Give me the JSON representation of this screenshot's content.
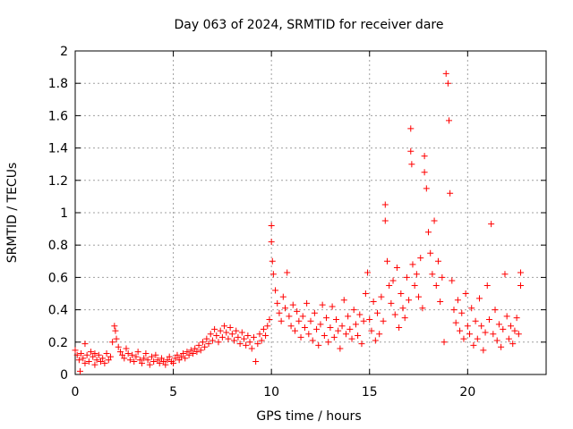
{
  "chart_data": {
    "type": "scatter",
    "title": "Day 063 of 2024, SRMTID for receiver dare",
    "xlabel": "GPS time / hours",
    "ylabel": "SRMTID / TECUs",
    "xlim": [
      0,
      24
    ],
    "ylim": [
      0,
      2
    ],
    "x_ticks": [
      0,
      5,
      10,
      15,
      20
    ],
    "x_tick_labels": [
      "0",
      "5",
      "10",
      "15",
      "20"
    ],
    "y_ticks": [
      0,
      0.2,
      0.4,
      0.6,
      0.8,
      1,
      1.2,
      1.4,
      1.6,
      1.8,
      2
    ],
    "y_tick_labels": [
      "0",
      "0.2",
      "0.4",
      "0.6",
      "0.8",
      "1",
      "1.2",
      "1.4",
      "1.6",
      "1.8",
      "2"
    ],
    "grid": true,
    "marker": "+",
    "color": "#ff0000",
    "series": [
      {
        "name": "SRMTID",
        "points": [
          [
            0.0,
            0.15
          ],
          [
            0.1,
            0.12
          ],
          [
            0.2,
            0.09
          ],
          [
            0.25,
            0.02
          ],
          [
            0.3,
            0.13
          ],
          [
            0.4,
            0.1
          ],
          [
            0.5,
            0.07
          ],
          [
            0.5,
            0.19
          ],
          [
            0.6,
            0.12
          ],
          [
            0.7,
            0.08
          ],
          [
            0.8,
            0.14
          ],
          [
            0.9,
            0.11
          ],
          [
            1.0,
            0.06
          ],
          [
            1.0,
            0.13
          ],
          [
            1.1,
            0.09
          ],
          [
            1.2,
            0.12
          ],
          [
            1.3,
            0.08
          ],
          [
            1.4,
            0.1
          ],
          [
            1.5,
            0.07
          ],
          [
            1.6,
            0.13
          ],
          [
            1.7,
            0.09
          ],
          [
            1.8,
            0.11
          ],
          [
            1.9,
            0.2
          ],
          [
            2.0,
            0.3
          ],
          [
            2.05,
            0.27
          ],
          [
            2.1,
            0.22
          ],
          [
            2.2,
            0.17
          ],
          [
            2.3,
            0.14
          ],
          [
            2.4,
            0.12
          ],
          [
            2.5,
            0.1
          ],
          [
            2.6,
            0.16
          ],
          [
            2.7,
            0.13
          ],
          [
            2.8,
            0.09
          ],
          [
            2.9,
            0.12
          ],
          [
            3.0,
            0.08
          ],
          [
            3.1,
            0.11
          ],
          [
            3.2,
            0.14
          ],
          [
            3.3,
            0.09
          ],
          [
            3.4,
            0.07
          ],
          [
            3.5,
            0.1
          ],
          [
            3.6,
            0.13
          ],
          [
            3.7,
            0.09
          ],
          [
            3.8,
            0.06
          ],
          [
            3.9,
            0.11
          ],
          [
            4.0,
            0.08
          ],
          [
            4.1,
            0.12
          ],
          [
            4.2,
            0.09
          ],
          [
            4.3,
            0.07
          ],
          [
            4.4,
            0.1
          ],
          [
            4.5,
            0.08
          ],
          [
            4.6,
            0.06
          ],
          [
            4.7,
            0.09
          ],
          [
            4.8,
            0.11
          ],
          [
            4.9,
            0.08
          ],
          [
            5.0,
            0.07
          ],
          [
            5.1,
            0.1
          ],
          [
            5.2,
            0.12
          ],
          [
            5.3,
            0.09
          ],
          [
            5.4,
            0.11
          ],
          [
            5.5,
            0.13
          ],
          [
            5.6,
            0.1
          ],
          [
            5.7,
            0.14
          ],
          [
            5.8,
            0.12
          ],
          [
            5.9,
            0.15
          ],
          [
            6.0,
            0.13
          ],
          [
            6.1,
            0.16
          ],
          [
            6.2,
            0.14
          ],
          [
            6.3,
            0.18
          ],
          [
            6.4,
            0.15
          ],
          [
            6.5,
            0.2
          ],
          [
            6.6,
            0.17
          ],
          [
            6.7,
            0.22
          ],
          [
            6.8,
            0.19
          ],
          [
            6.9,
            0.25
          ],
          [
            7.0,
            0.21
          ],
          [
            7.1,
            0.28
          ],
          [
            7.2,
            0.24
          ],
          [
            7.3,
            0.2
          ],
          [
            7.4,
            0.27
          ],
          [
            7.5,
            0.23
          ],
          [
            7.6,
            0.3
          ],
          [
            7.7,
            0.26
          ],
          [
            7.8,
            0.22
          ],
          [
            7.9,
            0.29
          ],
          [
            8.0,
            0.25
          ],
          [
            8.1,
            0.21
          ],
          [
            8.2,
            0.27
          ],
          [
            8.3,
            0.23
          ],
          [
            8.4,
            0.19
          ],
          [
            8.5,
            0.26
          ],
          [
            8.6,
            0.22
          ],
          [
            8.7,
            0.18
          ],
          [
            8.8,
            0.24
          ],
          [
            8.9,
            0.2
          ],
          [
            9.0,
            0.16
          ],
          [
            9.1,
            0.23
          ],
          [
            9.2,
            0.08
          ],
          [
            9.3,
            0.19
          ],
          [
            9.4,
            0.25
          ],
          [
            9.5,
            0.21
          ],
          [
            9.6,
            0.28
          ],
          [
            9.7,
            0.24
          ],
          [
            9.8,
            0.3
          ],
          [
            9.9,
            0.34
          ],
          [
            10.0,
            0.92
          ],
          [
            10.0,
            0.82
          ],
          [
            10.05,
            0.7
          ],
          [
            10.1,
            0.62
          ],
          [
            10.2,
            0.52
          ],
          [
            10.3,
            0.44
          ],
          [
            10.4,
            0.38
          ],
          [
            10.5,
            0.33
          ],
          [
            10.6,
            0.48
          ],
          [
            10.7,
            0.41
          ],
          [
            10.8,
            0.63
          ],
          [
            10.9,
            0.36
          ],
          [
            11.0,
            0.3
          ],
          [
            11.1,
            0.43
          ],
          [
            11.2,
            0.27
          ],
          [
            11.3,
            0.39
          ],
          [
            11.4,
            0.33
          ],
          [
            11.5,
            0.23
          ],
          [
            11.6,
            0.36
          ],
          [
            11.7,
            0.29
          ],
          [
            11.8,
            0.44
          ],
          [
            11.9,
            0.25
          ],
          [
            12.0,
            0.33
          ],
          [
            12.1,
            0.21
          ],
          [
            12.2,
            0.38
          ],
          [
            12.3,
            0.28
          ],
          [
            12.4,
            0.18
          ],
          [
            12.5,
            0.31
          ],
          [
            12.6,
            0.43
          ],
          [
            12.7,
            0.24
          ],
          [
            12.8,
            0.35
          ],
          [
            12.9,
            0.2
          ],
          [
            13.0,
            0.29
          ],
          [
            13.1,
            0.42
          ],
          [
            13.2,
            0.23
          ],
          [
            13.3,
            0.34
          ],
          [
            13.4,
            0.27
          ],
          [
            13.5,
            0.16
          ],
          [
            13.6,
            0.3
          ],
          [
            13.7,
            0.46
          ],
          [
            13.8,
            0.25
          ],
          [
            13.9,
            0.36
          ],
          [
            14.0,
            0.28
          ],
          [
            14.1,
            0.22
          ],
          [
            14.2,
            0.4
          ],
          [
            14.3,
            0.31
          ],
          [
            14.4,
            0.24
          ],
          [
            14.5,
            0.37
          ],
          [
            14.6,
            0.19
          ],
          [
            14.7,
            0.33
          ],
          [
            14.8,
            0.5
          ],
          [
            14.9,
            0.63
          ],
          [
            15.0,
            0.34
          ],
          [
            15.1,
            0.27
          ],
          [
            15.2,
            0.45
          ],
          [
            15.3,
            0.21
          ],
          [
            15.4,
            0.38
          ],
          [
            15.5,
            0.25
          ],
          [
            15.6,
            0.48
          ],
          [
            15.7,
            0.33
          ],
          [
            15.8,
            1.05
          ],
          [
            15.8,
            0.95
          ],
          [
            15.9,
            0.7
          ],
          [
            16.0,
            0.55
          ],
          [
            16.1,
            0.44
          ],
          [
            16.2,
            0.58
          ],
          [
            16.3,
            0.37
          ],
          [
            16.4,
            0.66
          ],
          [
            16.5,
            0.29
          ],
          [
            16.6,
            0.5
          ],
          [
            16.7,
            0.41
          ],
          [
            16.8,
            0.35
          ],
          [
            16.9,
            0.6
          ],
          [
            17.0,
            0.46
          ],
          [
            17.1,
            1.52
          ],
          [
            17.1,
            1.38
          ],
          [
            17.15,
            1.3
          ],
          [
            17.2,
            0.68
          ],
          [
            17.3,
            0.55
          ],
          [
            17.4,
            0.62
          ],
          [
            17.5,
            0.48
          ],
          [
            17.6,
            0.72
          ],
          [
            17.7,
            0.41
          ],
          [
            17.8,
            1.35
          ],
          [
            17.8,
            1.25
          ],
          [
            17.9,
            1.15
          ],
          [
            18.0,
            0.88
          ],
          [
            18.1,
            0.75
          ],
          [
            18.2,
            0.62
          ],
          [
            18.3,
            0.95
          ],
          [
            18.4,
            0.55
          ],
          [
            18.5,
            0.7
          ],
          [
            18.6,
            0.45
          ],
          [
            18.7,
            0.6
          ],
          [
            18.8,
            0.2
          ],
          [
            18.9,
            1.86
          ],
          [
            19.0,
            1.8
          ],
          [
            19.05,
            1.57
          ],
          [
            19.1,
            1.12
          ],
          [
            19.2,
            0.58
          ],
          [
            19.3,
            0.4
          ],
          [
            19.4,
            0.32
          ],
          [
            19.5,
            0.46
          ],
          [
            19.6,
            0.27
          ],
          [
            19.7,
            0.38
          ],
          [
            19.8,
            0.22
          ],
          [
            19.9,
            0.5
          ],
          [
            20.0,
            0.3
          ],
          [
            20.1,
            0.25
          ],
          [
            20.2,
            0.41
          ],
          [
            20.3,
            0.18
          ],
          [
            20.4,
            0.33
          ],
          [
            20.5,
            0.22
          ],
          [
            20.6,
            0.47
          ],
          [
            20.7,
            0.3
          ],
          [
            20.8,
            0.15
          ],
          [
            20.9,
            0.26
          ],
          [
            21.0,
            0.55
          ],
          [
            21.1,
            0.34
          ],
          [
            21.2,
            0.93
          ],
          [
            21.3,
            0.25
          ],
          [
            21.4,
            0.4
          ],
          [
            21.5,
            0.21
          ],
          [
            21.6,
            0.31
          ],
          [
            21.7,
            0.17
          ],
          [
            21.8,
            0.28
          ],
          [
            21.9,
            0.62
          ],
          [
            22.0,
            0.36
          ],
          [
            22.1,
            0.22
          ],
          [
            22.2,
            0.3
          ],
          [
            22.3,
            0.19
          ],
          [
            22.4,
            0.27
          ],
          [
            22.5,
            0.35
          ],
          [
            22.6,
            0.25
          ],
          [
            22.7,
            0.55
          ],
          [
            22.7,
            0.63
          ]
        ]
      }
    ]
  }
}
